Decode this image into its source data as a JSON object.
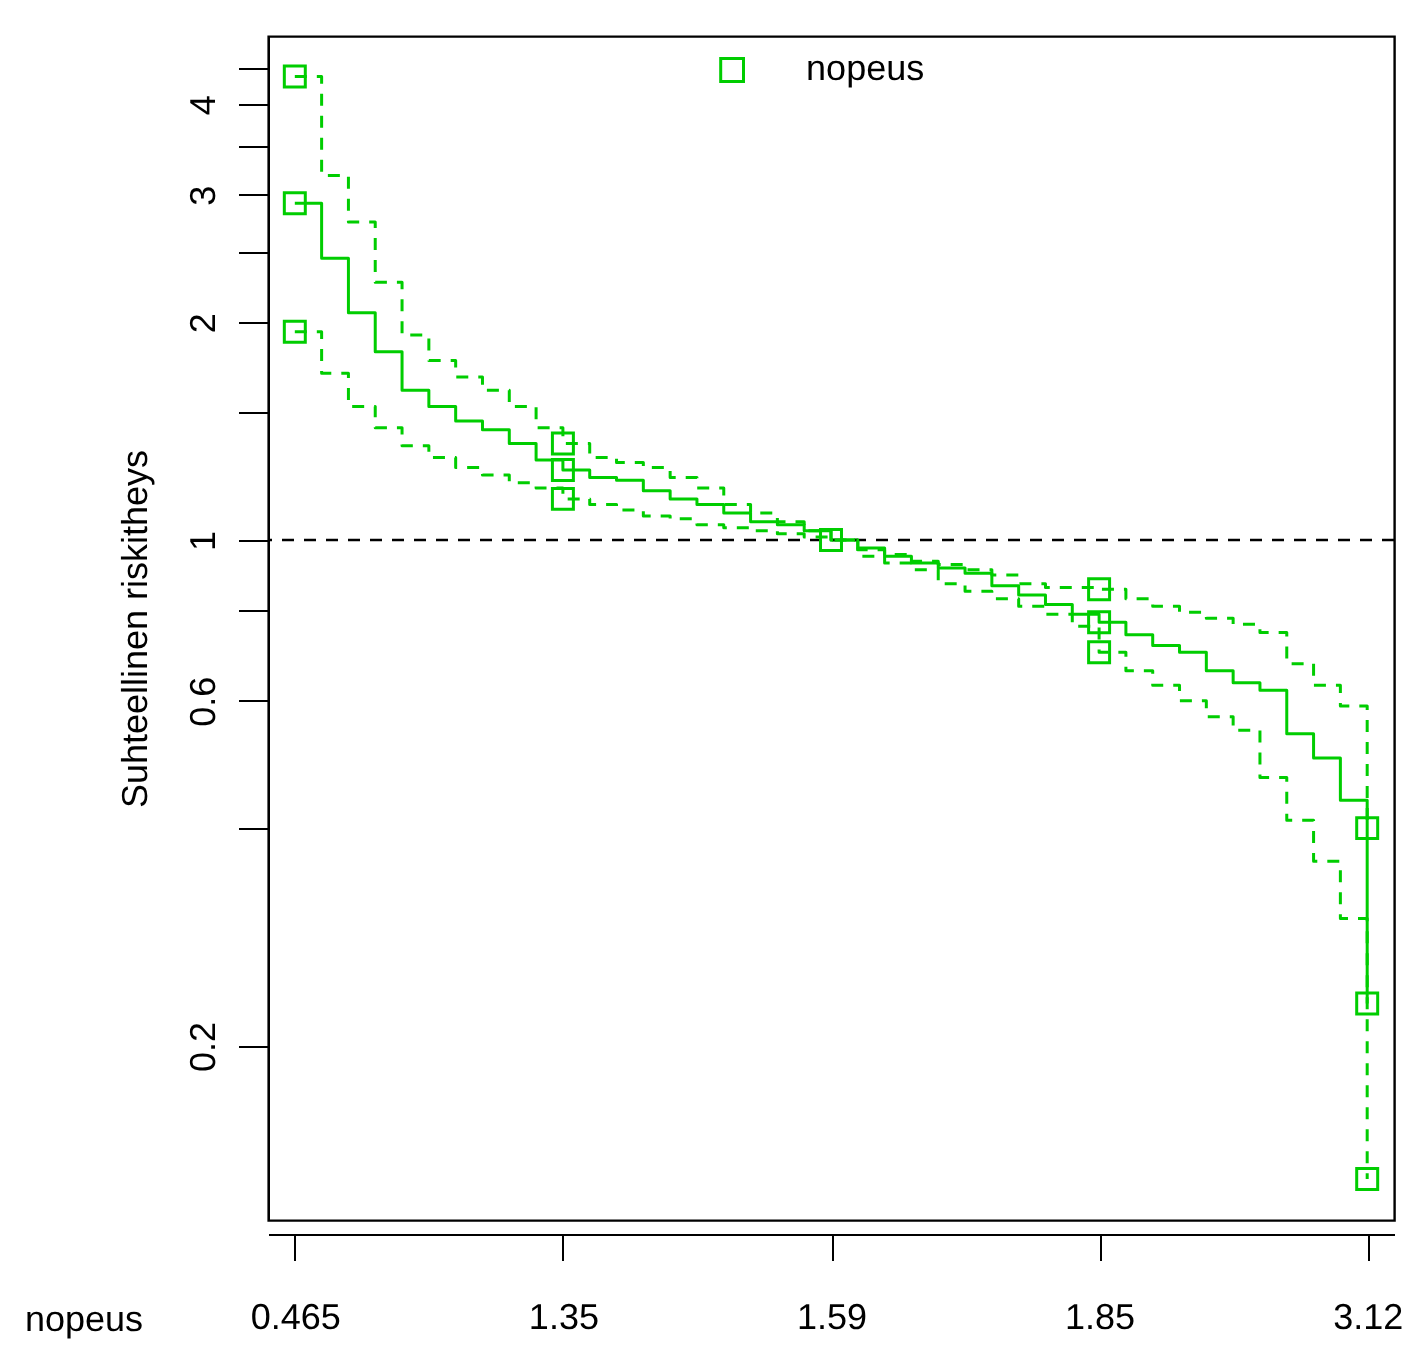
{
  "chart_data": {
    "type": "step",
    "xlabel": "nopeus",
    "ylabel": "Suhteellinen riskitheys",
    "log": true,
    "grid": false,
    "legend": "top",
    "marker": "none",
    "categories": [
      "0.465",
      null,
      null,
      null,
      null,
      null,
      null,
      null,
      null,
      null,
      "1.35",
      null,
      null,
      null,
      null,
      null,
      null,
      null,
      null,
      null,
      "1.59",
      null,
      null,
      null,
      null,
      null,
      null,
      null,
      null,
      null,
      "1.85",
      null,
      null,
      null,
      null,
      null,
      null,
      null,
      null,
      null,
      "3.12"
    ],
    "ylim": [
      0.115,
      4.97
    ],
    "yticks": [
      0.2,
      {
        "value": 0.4,
        "label": null
      },
      0.6,
      {
        "value": 0.8,
        "label": null
      },
      1,
      {
        "value": 1.5,
        "label": null
      },
      2,
      {
        "value": 2.5,
        "label": null
      },
      3,
      {
        "value": 3.5,
        "label": null
      },
      4,
      {
        "value": 4.5,
        "label": null
      }
    ],
    "ref_lines": [
      {
        "axis": "y",
        "value": 1,
        "label": null,
        "color": "#000000",
        "line_style": "dashed"
      }
    ],
    "series": [
      {
        "name": "nopeus",
        "color": "#00cd00",
        "line_style": "solid",
        "values": [
          2.92,
          2.45,
          2.06,
          1.82,
          1.61,
          1.53,
          1.46,
          1.42,
          1.36,
          1.29,
          1.25,
          1.22,
          1.21,
          1.17,
          1.14,
          1.12,
          1.09,
          1.06,
          1.05,
          1.03,
          1.0,
          0.975,
          0.95,
          0.93,
          0.915,
          0.9,
          0.865,
          0.84,
          0.815,
          0.79,
          0.77,
          0.74,
          0.715,
          0.7,
          0.66,
          0.635,
          0.62,
          0.54,
          0.5,
          0.437,
          0.229
        ]
      },
      {
        "color": "#00cd00",
        "line_style": "dashed",
        "values": [
          4.37,
          3.19,
          2.75,
          2.27,
          1.92,
          1.77,
          1.68,
          1.61,
          1.53,
          1.43,
          1.36,
          1.3,
          1.28,
          1.26,
          1.22,
          1.18,
          1.12,
          1.09,
          1.06,
          1.03,
          1.0,
          0.97,
          0.955,
          0.935,
          0.925,
          0.91,
          0.895,
          0.87,
          0.86,
          0.86,
          0.855,
          0.83,
          0.81,
          0.795,
          0.78,
          0.765,
          0.745,
          0.675,
          0.63,
          0.59,
          0.4
        ]
      },
      {
        "color": "#00cd00",
        "line_style": "dashed",
        "values": [
          1.94,
          1.7,
          1.53,
          1.43,
          1.35,
          1.3,
          1.26,
          1.23,
          1.2,
          1.18,
          1.14,
          1.12,
          1.1,
          1.08,
          1.07,
          1.05,
          1.04,
          1.03,
          1.02,
          1.01,
          1.0,
          0.95,
          0.93,
          0.91,
          0.87,
          0.85,
          0.83,
          0.81,
          0.79,
          0.76,
          0.7,
          0.66,
          0.63,
          0.6,
          0.57,
          0.546,
          0.47,
          0.41,
          0.36,
          0.3,
          0.131
        ]
      },
      {
        "type": "scatter",
        "color": "#00cd00",
        "marker": "square",
        "values": [
          2.92,
          null,
          null,
          null,
          null,
          null,
          null,
          null,
          null,
          null,
          1.25,
          null,
          null,
          null,
          null,
          null,
          null,
          null,
          null,
          null,
          1.0,
          null,
          null,
          null,
          null,
          null,
          null,
          null,
          null,
          null,
          0.77,
          null,
          null,
          null,
          null,
          null,
          null,
          null,
          null,
          null,
          0.229
        ]
      },
      {
        "type": "scatter",
        "color": "#00cd00",
        "marker": "square",
        "values": [
          4.37,
          null,
          null,
          null,
          null,
          null,
          null,
          null,
          null,
          null,
          1.36,
          null,
          null,
          null,
          null,
          null,
          null,
          null,
          null,
          null,
          null,
          null,
          null,
          null,
          null,
          null,
          null,
          null,
          null,
          null,
          0.855,
          null,
          null,
          null,
          null,
          null,
          null,
          null,
          null,
          null,
          0.4
        ]
      },
      {
        "type": "scatter",
        "color": "#00cd00",
        "marker": "square",
        "values": [
          1.94,
          null,
          null,
          null,
          null,
          null,
          null,
          null,
          null,
          null,
          1.14,
          null,
          null,
          null,
          null,
          null,
          null,
          null,
          null,
          null,
          null,
          null,
          null,
          null,
          null,
          null,
          null,
          null,
          null,
          null,
          0.7,
          null,
          null,
          null,
          null,
          null,
          null,
          null,
          null,
          null,
          0.131
        ]
      }
    ]
  }
}
